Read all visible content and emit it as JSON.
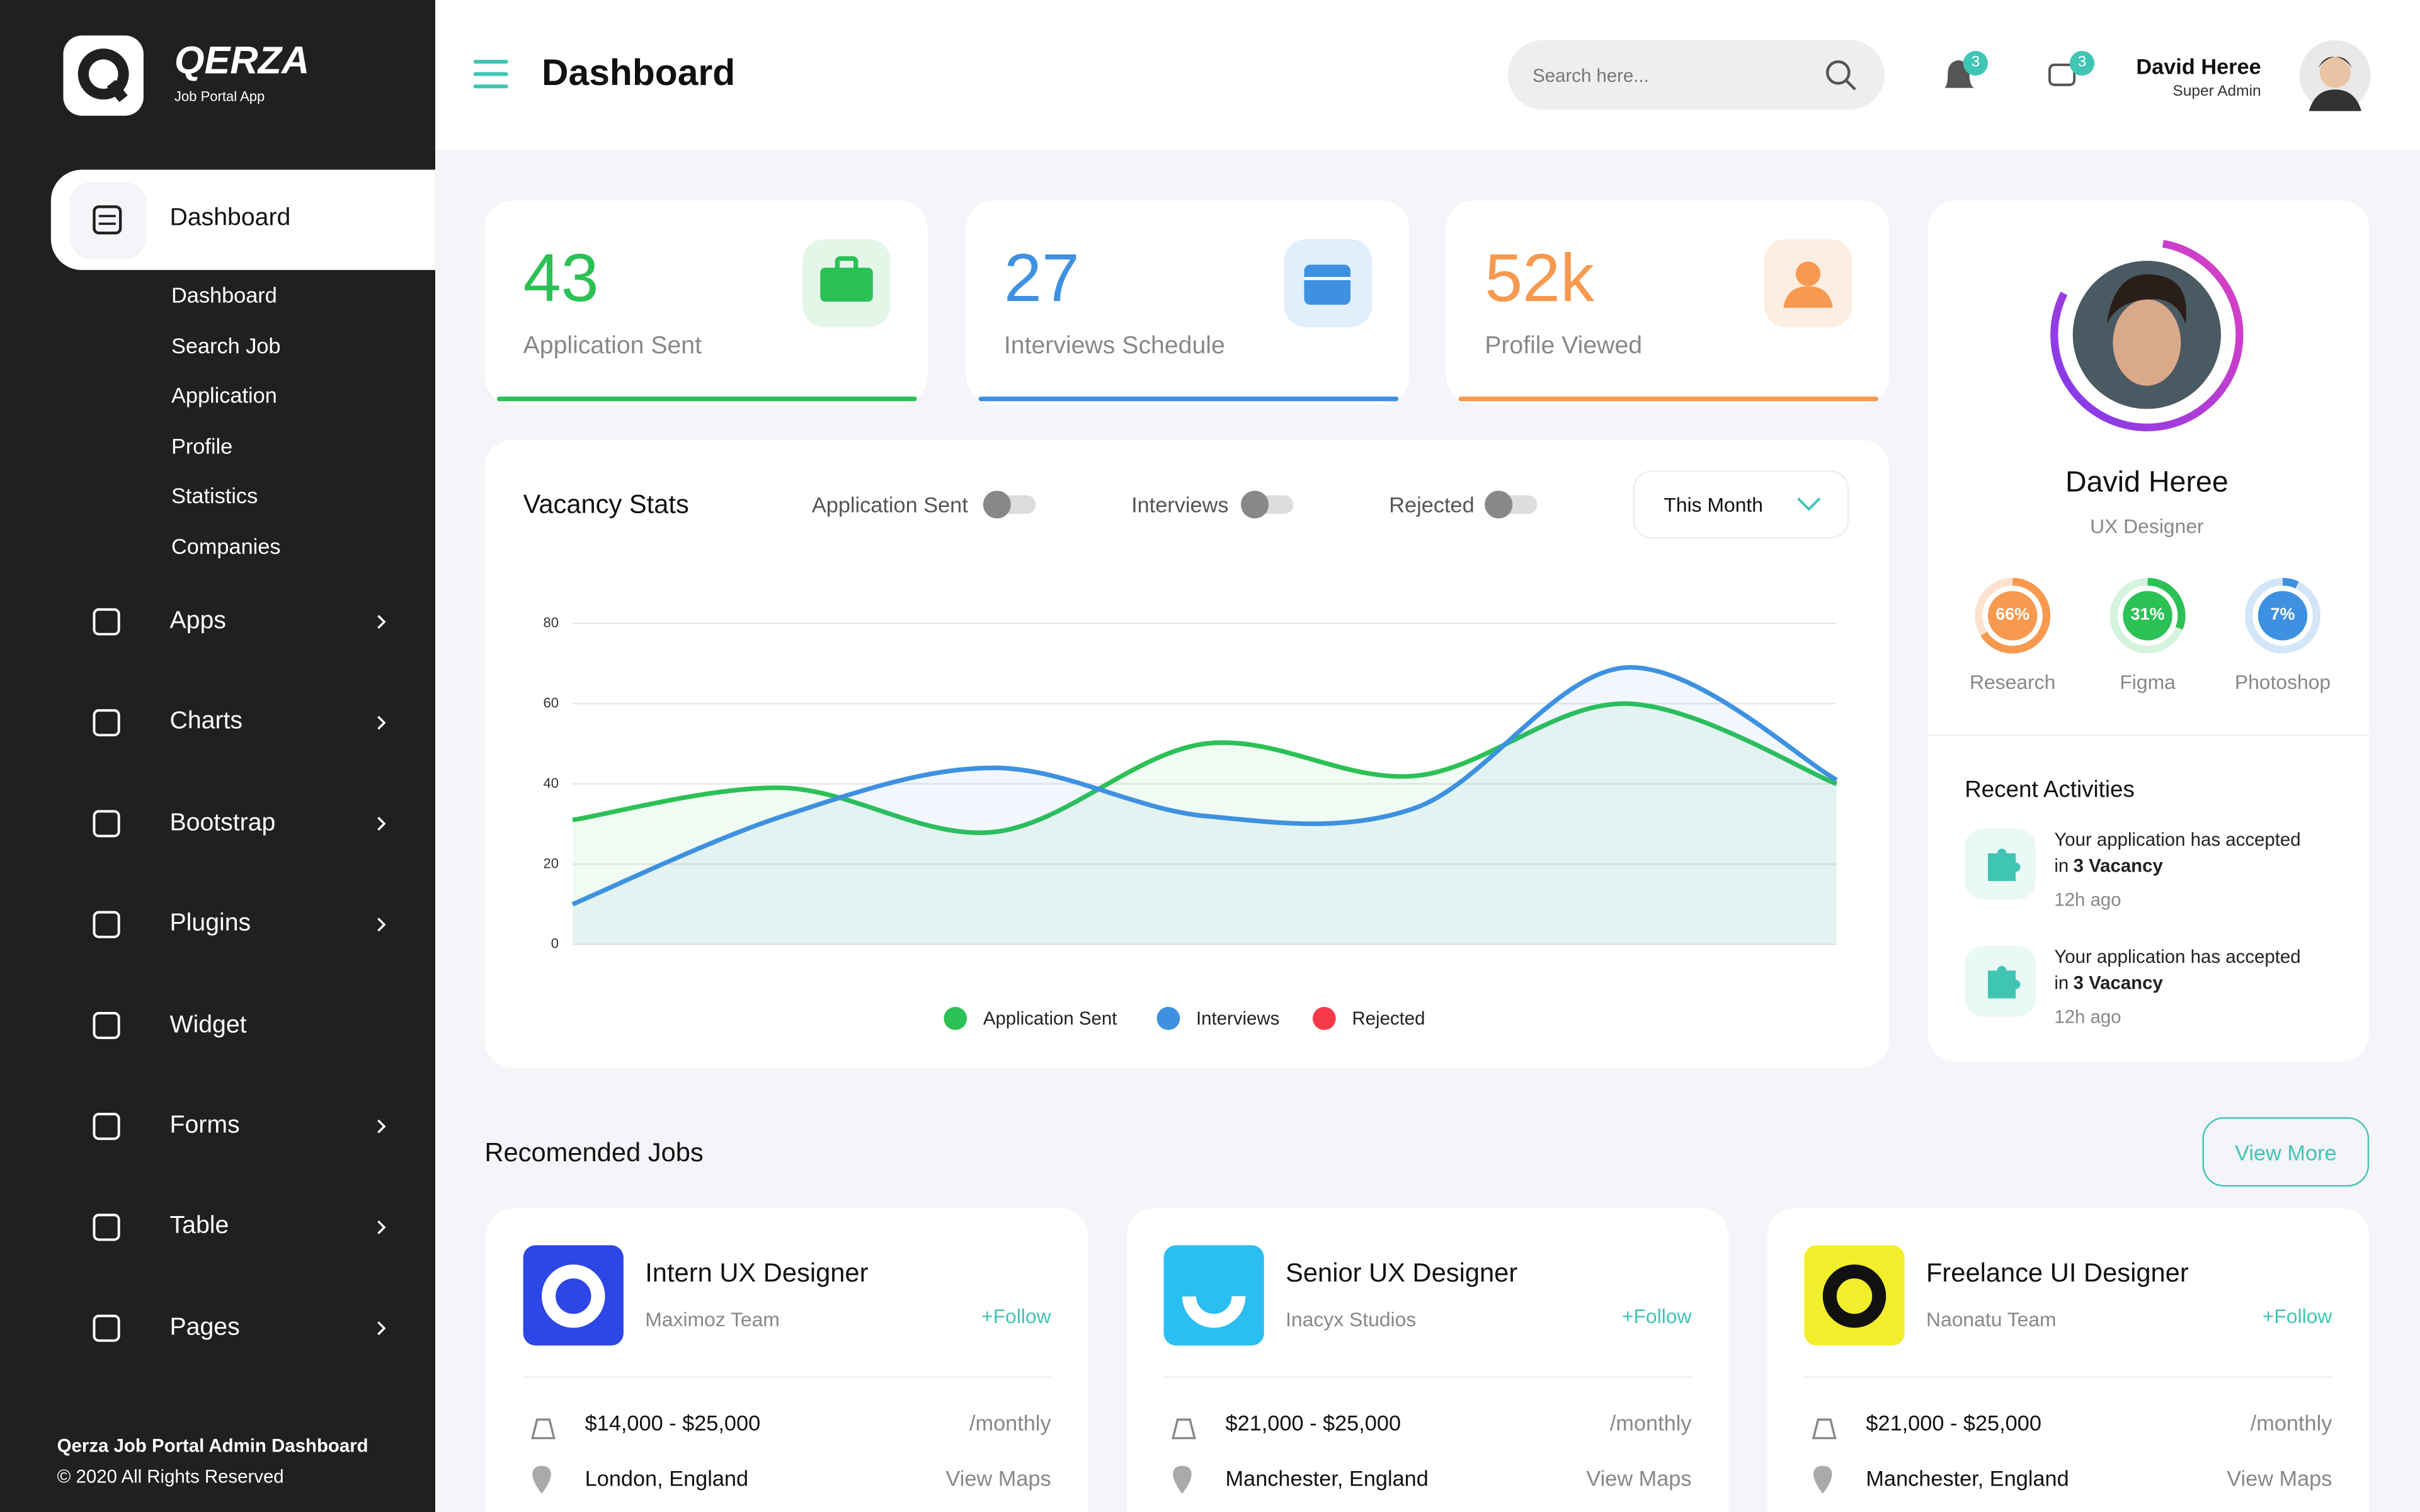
{
  "brand": {
    "name": "QERZA",
    "tagline": "Job Portal App"
  },
  "sidebar": {
    "active": "Dashboard",
    "submenu": [
      "Dashboard",
      "Search Job",
      "Application",
      "Profile",
      "Statistics",
      "Companies"
    ],
    "menu": [
      {
        "label": "Apps",
        "arrow": true
      },
      {
        "label": "Charts",
        "arrow": true
      },
      {
        "label": "Bootstrap",
        "arrow": true
      },
      {
        "label": "Plugins",
        "arrow": true
      },
      {
        "label": "Widget",
        "arrow": false
      },
      {
        "label": "Forms",
        "arrow": true
      },
      {
        "label": "Table",
        "arrow": true
      },
      {
        "label": "Pages",
        "arrow": true
      }
    ],
    "footer": {
      "title": "Qerza Job Portal Admin Dashboard",
      "copyright": "© 2020 All Rights Reserved"
    }
  },
  "header": {
    "title": "Dashboard",
    "search_placeholder": "Search here...",
    "notifications": "3",
    "messages": "3",
    "user": {
      "name": "David Heree",
      "role": "Super Admin"
    }
  },
  "stats": [
    {
      "value": "43",
      "label": "Application Sent",
      "color": "#2bc155",
      "bg": "#e3f7e9"
    },
    {
      "value": "27",
      "label": "Interviews Schedule",
      "color": "#3e91e0",
      "bg": "#e1eefb"
    },
    {
      "value": "52k",
      "label": "Profile Viewed",
      "color": "#f7994f",
      "bg": "#fdeee2"
    }
  ],
  "vacancy_chart": {
    "type": "line",
    "title": "Vacancy Stats",
    "period": "This Month",
    "categories": [
      null,
      null,
      null,
      null,
      null,
      null,
      null
    ],
    "series": [
      {
        "name": "Application Sent",
        "color": "#2bc155",
        "values": [
          31,
          39,
          28,
          50,
          42,
          60,
          40
        ]
      },
      {
        "name": "Interviews",
        "color": "#3e91e0",
        "values": [
          10,
          32,
          44,
          32,
          34,
          69,
          41
        ]
      },
      {
        "name": "Rejected",
        "color": "#f73a4a",
        "values": [
          null,
          null,
          null,
          null,
          null,
          null,
          null
        ]
      }
    ],
    "ylim": [
      0,
      80
    ],
    "yticks": [
      0,
      20,
      40,
      60,
      80
    ],
    "grid": true
  },
  "profile": {
    "name": "David Heree",
    "role": "UX Designer",
    "skills": [
      {
        "name": "Research",
        "value": 66,
        "label": "66%",
        "color": "#f7994f",
        "track": "#fde3cf"
      },
      {
        "name": "Figma",
        "value": 31,
        "label": "31%",
        "color": "#2bc155",
        "track": "#d5f3de"
      },
      {
        "name": "Photoshop",
        "value": 7,
        "label": "7%",
        "color": "#3e91e0",
        "track": "#d3e6f8"
      }
    ]
  },
  "recent_activities": {
    "title": "Recent Activities",
    "items": [
      {
        "line1": "Your application has accepted",
        "line2": "in",
        "highlight": "3 Vacancy",
        "time": "12h ago"
      },
      {
        "line1": "Your application has accepted",
        "line2": "in",
        "highlight": "3 Vacancy",
        "time": "12h ago"
      }
    ]
  },
  "jobs": {
    "title": "Recomended Jobs",
    "view_more": "View More",
    "items": [
      {
        "title": "Intern UX Designer",
        "company": "Maximoz Team",
        "follow": "+Follow",
        "salary": "$14,000 - $25,000",
        "period": "/monthly",
        "location": "London, England",
        "maps": "View Maps",
        "logo": "#2d46e6"
      },
      {
        "title": "Senior UX Designer",
        "company": "Inacyx Studios",
        "follow": "+Follow",
        "salary": "$21,000 - $25,000",
        "period": "/monthly",
        "location": "Manchester, England",
        "maps": "View Maps",
        "logo": "#2bbef0"
      },
      {
        "title": "Freelance UI Designer",
        "company": "Naonatu Team",
        "follow": "+Follow",
        "salary": "$21,000 - $25,000",
        "period": "/monthly",
        "location": "Manchester, England",
        "maps": "View Maps",
        "logo": "#f2ee2b"
      }
    ]
  }
}
